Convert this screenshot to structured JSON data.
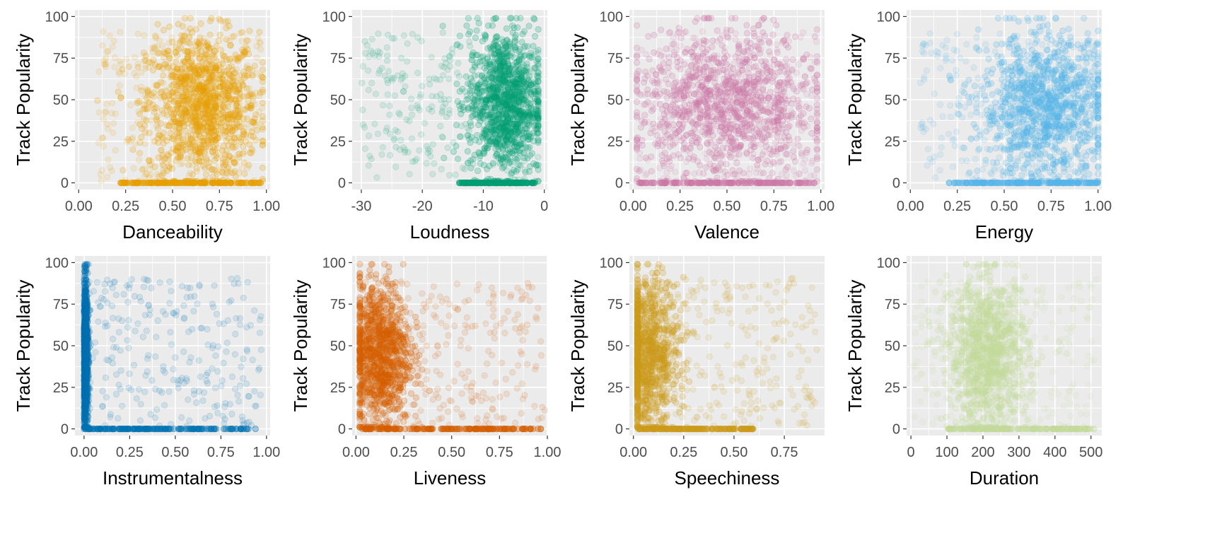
{
  "chart_data": [
    {
      "type": "scatter",
      "xlabel": "Danceability",
      "ylabel": "Track Popularity",
      "color": "#E69F00",
      "xlim": [
        -0.02,
        1.02
      ],
      "ylim": [
        -4,
        104
      ],
      "xticks": [
        0,
        0.25,
        0.5,
        0.75,
        1
      ],
      "xtick_labels": [
        "0.00",
        "0.25",
        "0.50",
        "0.75",
        "1.00"
      ],
      "yticks": [
        0,
        25,
        50,
        75,
        100
      ],
      "ytick_labels": [
        "0",
        "25",
        "50",
        "75",
        "100"
      ],
      "grid": true,
      "distribution": {
        "x_range": [
          0.1,
          0.98
        ],
        "x_center": 0.66,
        "x_spread": 0.15,
        "y_center": 46,
        "y_spread": 22,
        "zero_band": [
          0.22,
          0.97
        ],
        "max_popularity": 99
      }
    },
    {
      "type": "scatter",
      "xlabel": "Loudness",
      "ylabel": "Track Popularity",
      "color": "#009E73",
      "xlim": [
        -31.5,
        0.5
      ],
      "ylim": [
        -4,
        104
      ],
      "xticks": [
        -30,
        -20,
        -10,
        0
      ],
      "xtick_labels": [
        "-30",
        "-20",
        "-10",
        "0"
      ],
      "yticks": [
        0,
        25,
        50,
        75,
        100
      ],
      "ytick_labels": [
        "0",
        "25",
        "50",
        "75",
        "100"
      ],
      "grid": true,
      "distribution": {
        "x_range": [
          -30,
          -1
        ],
        "x_center": -6.5,
        "x_spread": 3,
        "y_center": 48,
        "y_spread": 22,
        "zero_band": [
          -14,
          -1.5
        ],
        "max_popularity": 99
      }
    },
    {
      "type": "scatter",
      "xlabel": "Valence",
      "ylabel": "Track Popularity",
      "color": "#CC79A7",
      "xlim": [
        -0.02,
        1.02
      ],
      "ylim": [
        -4,
        104
      ],
      "xticks": [
        0,
        0.25,
        0.5,
        0.75,
        1
      ],
      "xtick_labels": [
        "0.00",
        "0.25",
        "0.50",
        "0.75",
        "1.00"
      ],
      "yticks": [
        0,
        25,
        50,
        75,
        100
      ],
      "ytick_labels": [
        "0",
        "25",
        "50",
        "75",
        "100"
      ],
      "grid": true,
      "distribution": {
        "x_range": [
          0.02,
          0.98
        ],
        "x_center": 0.5,
        "x_spread": 0.24,
        "y_center": 46,
        "y_spread": 22,
        "zero_band": [
          0.03,
          0.97
        ],
        "max_popularity": 99
      }
    },
    {
      "type": "scatter",
      "xlabel": "Energy",
      "ylabel": "Track Popularity",
      "color": "#56B4E9",
      "xlim": [
        -0.02,
        1.02
      ],
      "ylim": [
        -4,
        104
      ],
      "xticks": [
        0,
        0.25,
        0.5,
        0.75,
        1
      ],
      "xtick_labels": [
        "0.00",
        "0.25",
        "0.50",
        "0.75",
        "1.00"
      ],
      "yticks": [
        0,
        25,
        50,
        75,
        100
      ],
      "ytick_labels": [
        "0",
        "25",
        "50",
        "75",
        "100"
      ],
      "grid": true,
      "distribution": {
        "x_range": [
          0.05,
          1.0
        ],
        "x_center": 0.72,
        "x_spread": 0.17,
        "y_center": 45,
        "y_spread": 22,
        "zero_band": [
          0.2,
          1.0
        ],
        "max_popularity": 99
      }
    },
    {
      "type": "scatter",
      "xlabel": "Instrumentalness",
      "ylabel": "Track Popularity",
      "color": "#0072B2",
      "xlim": [
        -0.05,
        1.02
      ],
      "ylim": [
        -4,
        104
      ],
      "xticks": [
        0,
        0.25,
        0.5,
        0.75,
        1
      ],
      "xtick_labels": [
        "0.00",
        "0.25",
        "0.50",
        "0.75",
        "1.00"
      ],
      "yticks": [
        0,
        25,
        50,
        75,
        100
      ],
      "ytick_labels": [
        "0",
        "25",
        "50",
        "75",
        "100"
      ],
      "grid": true,
      "distribution": {
        "x_range": [
          0,
          0.98
        ],
        "x_center": 0.0,
        "x_spread": 0.01,
        "y_center": 45,
        "y_spread": 22,
        "zero_band": [
          0.0,
          0.95
        ],
        "max_popularity": 99
      }
    },
    {
      "type": "scatter",
      "xlabel": "Liveness",
      "ylabel": "Track Popularity",
      "color": "#D55E00",
      "xlim": [
        -0.02,
        1.0
      ],
      "ylim": [
        -4,
        104
      ],
      "xticks": [
        0,
        0.25,
        0.5,
        0.75,
        1
      ],
      "xtick_labels": [
        "0.00",
        "0.25",
        "0.50",
        "0.75",
        "1.00"
      ],
      "yticks": [
        0,
        25,
        50,
        75,
        100
      ],
      "ytick_labels": [
        "0",
        "25",
        "50",
        "75",
        "100"
      ],
      "grid": true,
      "distribution": {
        "x_range": [
          0.02,
          0.99
        ],
        "x_center": 0.12,
        "x_spread": 0.08,
        "y_center": 45,
        "y_spread": 22,
        "zero_band": [
          0.02,
          0.97
        ],
        "max_popularity": 99
      }
    },
    {
      "type": "scatter",
      "xlabel": "Speechiness",
      "ylabel": "Track Popularity",
      "color": "#CC9B1A",
      "xlim": [
        -0.02,
        0.95
      ],
      "ylim": [
        -4,
        104
      ],
      "xticks": [
        0,
        0.25,
        0.5,
        0.75
      ],
      "xtick_labels": [
        "0.00",
        "0.25",
        "0.50",
        "0.75"
      ],
      "yticks": [
        0,
        25,
        50,
        75,
        100
      ],
      "ytick_labels": [
        "0",
        "25",
        "50",
        "75",
        "100"
      ],
      "grid": true,
      "distribution": {
        "x_range": [
          0.02,
          0.92
        ],
        "x_center": 0.06,
        "x_spread": 0.08,
        "y_center": 45,
        "y_spread": 22,
        "zero_band": [
          0.02,
          0.6
        ],
        "max_popularity": 99
      }
    },
    {
      "type": "scatter",
      "xlabel": "Duration",
      "ylabel": "Track Popularity",
      "color": "#C3DA9B",
      "xlim": [
        -12,
        530
      ],
      "ylim": [
        -4,
        104
      ],
      "xticks": [
        0,
        100,
        200,
        300,
        400,
        500
      ],
      "xtick_labels": [
        "0",
        "100",
        "200",
        "300",
        "400",
        "500"
      ],
      "yticks": [
        0,
        25,
        50,
        75,
        100
      ],
      "ytick_labels": [
        "0",
        "25",
        "50",
        "75",
        "100"
      ],
      "grid": true,
      "distribution": {
        "x_range": [
          5,
          515
        ],
        "x_center": 215,
        "x_spread": 55,
        "y_center": 45,
        "y_spread": 22,
        "zero_band": [
          100,
          510
        ],
        "max_popularity": 99
      }
    }
  ]
}
